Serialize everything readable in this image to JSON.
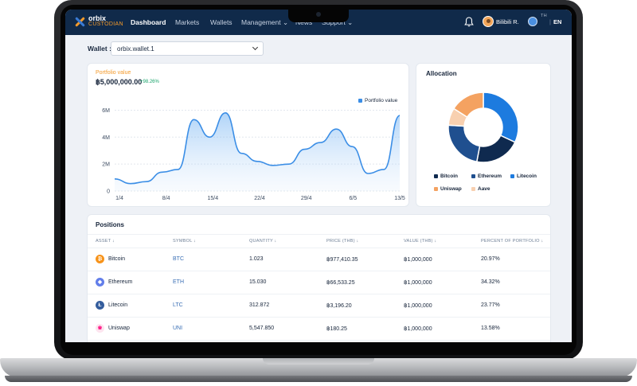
{
  "brand": {
    "name": "orbix",
    "sub": "CUSTODIAN"
  },
  "nav": {
    "items": [
      "Dashboard",
      "Markets",
      "Wallets",
      "Management ⌄",
      "News",
      "Support ⌄"
    ],
    "active": "Dashboard",
    "user": "Bilibili R.",
    "lang_th": "TH",
    "lang_sep": "|",
    "lang_en": "EN"
  },
  "wallet": {
    "label": "Wallet :",
    "value": "orbix.wallet.1"
  },
  "portfolio": {
    "title": "Portfolio value",
    "value": "฿5,000,000.00",
    "change": "+98.26%",
    "legend": "Portfolio value"
  },
  "allocation": {
    "title": "Allocation",
    "legend": [
      "Bitcoin",
      "Ethereum",
      "Litecoin",
      "Uniswap",
      "Aave"
    ]
  },
  "colors": {
    "bitcoin": "#0f2a4f",
    "ethereum": "#1f4f8f",
    "litecoin": "#1d7bdf",
    "uniswap": "#f4a261",
    "aave": "#f8d0b0",
    "accent": "#f39a2b",
    "line": "#3b8ee6"
  },
  "chart_data": {
    "type": "area",
    "x_ticks": [
      "1/4",
      "8/4",
      "15/4",
      "22/4",
      "29/4",
      "6/5",
      "13/5"
    ],
    "y_ticks": [
      "0",
      "2M",
      "4M",
      "6M"
    ],
    "ylim": [
      0,
      6500000
    ],
    "series": [
      {
        "name": "Portfolio value",
        "values": [
          900000,
          550000,
          700000,
          1400000,
          1600000,
          5300000,
          4000000,
          5800000,
          2800000,
          2200000,
          1900000,
          2000000,
          3100000,
          3600000,
          4600000,
          3300000,
          1300000,
          1600000,
          5600000
        ]
      }
    ]
  },
  "allocation_data": {
    "type": "pie",
    "labels": [
      "Litecoin",
      "Bitcoin",
      "Ethereum",
      "Aave",
      "Uniswap"
    ],
    "values": [
      32,
      21,
      23,
      8,
      16
    ]
  },
  "positions": {
    "title": "Positions",
    "headers": [
      "ASSET ↓",
      "SYMBOL ↓",
      "QUANTITY ↓",
      "PRICE (THB) ↓",
      "VALUE (THB) ↓",
      "PERCENT OF PORTFOLIO ↓"
    ],
    "rows": [
      {
        "asset": "Bitcoin",
        "symbol": "BTC",
        "quantity": "1.023",
        "price": "฿977,410.35",
        "value": "฿1,000,000",
        "percent": "20.97%",
        "glyph": "₿",
        "color": "#f7931a"
      },
      {
        "asset": "Ethereum",
        "symbol": "ETH",
        "quantity": "15.030",
        "price": "฿66,533.25",
        "value": "฿1,000,000",
        "percent": "34.32%",
        "glyph": "◆",
        "color": "#627eea"
      },
      {
        "asset": "Litecoin",
        "symbol": "LTC",
        "quantity": "312.872",
        "price": "฿3,196.20",
        "value": "฿1,000,000",
        "percent": "23.77%",
        "glyph": "Ł",
        "color": "#345d9d"
      },
      {
        "asset": "Uniswap",
        "symbol": "UNI",
        "quantity": "5,547.850",
        "price": "฿180.25",
        "value": "฿1,000,000",
        "percent": "13.58%",
        "glyph": "❀",
        "color": "#ff007a"
      }
    ]
  }
}
